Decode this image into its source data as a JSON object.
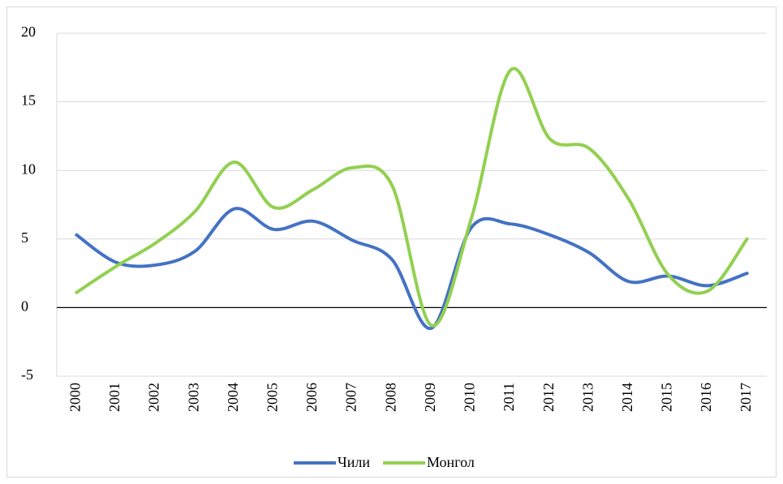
{
  "chart_data": {
    "type": "line",
    "categories": [
      "2000",
      "2001",
      "2002",
      "2003",
      "2004",
      "2005",
      "2006",
      "2007",
      "2008",
      "2009",
      "2010",
      "2011",
      "2012",
      "2013",
      "2014",
      "2015",
      "2016",
      "2017"
    ],
    "series": [
      {
        "name": "Чили",
        "color": "#4472c4",
        "values": [
          5.3,
          3.3,
          3.1,
          4.1,
          7.2,
          5.7,
          6.3,
          4.9,
          3.5,
          -1.5,
          5.8,
          6.1,
          5.3,
          4.0,
          1.9,
          2.3,
          1.6,
          2.5
        ]
      },
      {
        "name": "Монгол",
        "color": "#92d050",
        "values": [
          1.1,
          3.0,
          4.7,
          7.0,
          10.6,
          7.3,
          8.6,
          10.2,
          8.9,
          -1.3,
          6.4,
          17.3,
          12.3,
          11.6,
          7.9,
          2.4,
          1.2,
          5.0
        ]
      }
    ],
    "ylim": [
      -5,
      20
    ],
    "yticks": [
      -5,
      0,
      5,
      10,
      15,
      20
    ],
    "grid": true,
    "legend": "bottom"
  }
}
